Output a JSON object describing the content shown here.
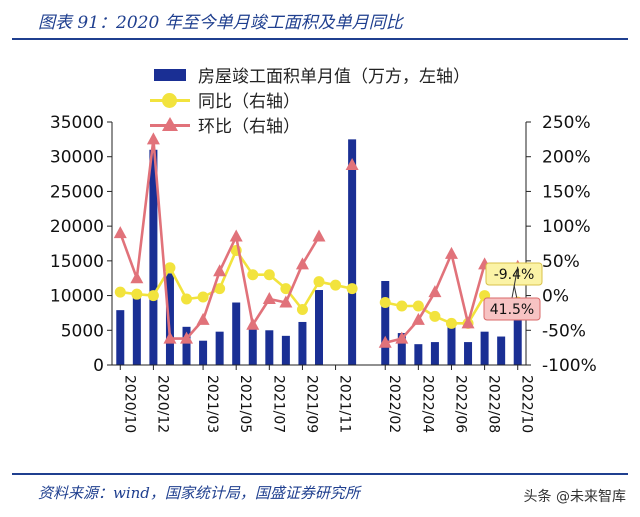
{
  "header": {
    "title": "图表 91：2020 年至今单月竣工面积及单月同比"
  },
  "footer": {
    "source": "资料来源：wind，国家统计局，国盛证券研究所",
    "watermark": "头条 @未来智库"
  },
  "colors": {
    "bars": "#1a2f94",
    "yoy": "#f2e33d",
    "mom": "#e1727a",
    "rule": "#1f3f8f",
    "callout_yoy_bg": "#fbf3a6",
    "callout_mom_bg": "#f7c3c3"
  },
  "icons": {
    "yoy_marker": "circle-icon",
    "mom_marker": "triangle-icon"
  },
  "callouts": {
    "yoy_label": "-9.4%",
    "mom_label": "41.5%"
  },
  "chart_data": {
    "type": "bar",
    "x": [
      "2020/10",
      "2020/11",
      "2020/12",
      "2021/01",
      "2021/02",
      "2021/03",
      "2021/04",
      "2021/05",
      "2021/06",
      "2021/07",
      "2021/08",
      "2021/09",
      "2021/10",
      "2021/11",
      "2021/12",
      "2022/01",
      "2022/02",
      "2022/03",
      "2022/04",
      "2022/05",
      "2022/06",
      "2022/07",
      "2022/08",
      "2022/09",
      "2022/10"
    ],
    "x_tick_labels": [
      "2020/10",
      "2020/12",
      "2021/03",
      "2021/05",
      "2021/07",
      "2021/09",
      "2021/11",
      "2022/02",
      "2022/04",
      "2022/06",
      "2022/08",
      "2022/10"
    ],
    "left_axis": {
      "ylim": [
        0,
        35000
      ],
      "ticks": [
        "0",
        "5000",
        "10000",
        "15000",
        "20000",
        "25000",
        "30000",
        "35000"
      ]
    },
    "right_axis": {
      "ylim": [
        -100,
        250
      ],
      "ticks": [
        "-100%",
        "-50%",
        "0%",
        "50%",
        "100%",
        "150%",
        "200%",
        "250%"
      ]
    },
    "grid": false,
    "legend_position": "top",
    "series": [
      {
        "name": "房屋竣工面积单月值（万方，左轴）",
        "type": "bar",
        "axis": "left",
        "values": [
          7900,
          9800,
          31000,
          13200,
          5500,
          3500,
          4800,
          9000,
          5600,
          5000,
          4200,
          6200,
          10800,
          null,
          32500,
          null,
          12100,
          4600,
          3000,
          3300,
          5900,
          3300,
          4800,
          4100,
          7000
        ]
      },
      {
        "name": "同比（右轴）",
        "type": "line",
        "axis": "right",
        "values": [
          5,
          2,
          0,
          40,
          -5,
          -2,
          10,
          65,
          30,
          30,
          10,
          -20,
          20,
          15,
          10,
          null,
          -10,
          -15,
          -15,
          -30,
          -40,
          -40,
          0,
          null,
          -9.4
        ]
      },
      {
        "name": "环比（右轴）",
        "type": "line",
        "axis": "right",
        "values": [
          90,
          25,
          225,
          -62,
          -62,
          -35,
          35,
          85,
          -42,
          -5,
          -10,
          45,
          85,
          null,
          188,
          null,
          -68,
          -62,
          -35,
          5,
          60,
          -40,
          45,
          null,
          41.5
        ]
      }
    ]
  }
}
